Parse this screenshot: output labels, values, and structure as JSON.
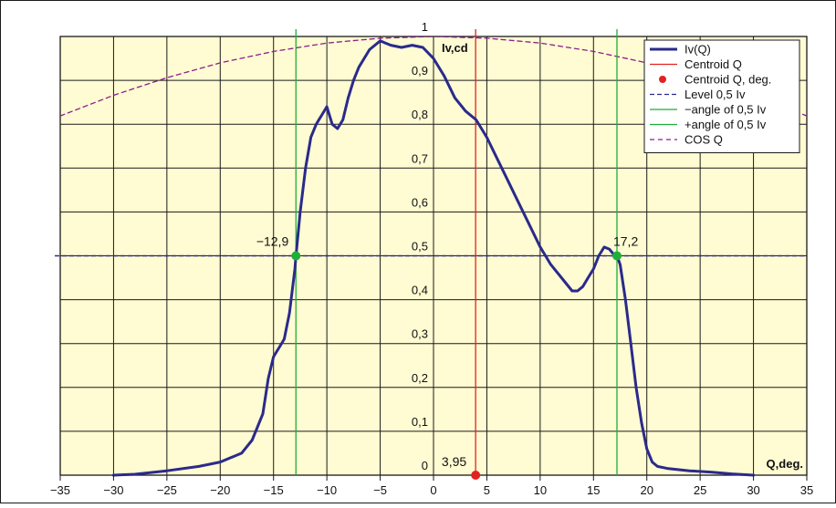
{
  "chart_data": {
    "type": "line",
    "xlabel": "Q,deg.",
    "ylabel": "Iv,cd",
    "xlim": [
      -35,
      35
    ],
    "ylim": [
      0,
      1
    ],
    "x_ticks": [
      "-35",
      "-30",
      "-25",
      "-20",
      "-15",
      "-10",
      "-5",
      "0",
      "5",
      "10",
      "15",
      "20",
      "25",
      "30",
      "35"
    ],
    "y_ticks": [
      "0",
      "0,1",
      "0,2",
      "0,3",
      "0,4",
      "0,5",
      "0,6",
      "0,7",
      "0,8",
      "0,9",
      "1"
    ],
    "grid": true,
    "legend_position": "top-right",
    "legend": [
      "Iv(Q)",
      "Centroid Q",
      "Centroid Q, deg.",
      "Level 0,5 Iv",
      "−angle of 0,5 Iv",
      "+angle of 0,5 Iv",
      "COS Q"
    ],
    "series": [
      {
        "name": "Iv(Q)",
        "color": "#2a2a8c",
        "x": [
          -30,
          -28,
          -25,
          -22,
          -20,
          -18,
          -17,
          -16,
          -15.5,
          -15,
          -14.5,
          -14,
          -13.5,
          -13,
          -12.9,
          -12.5,
          -12,
          -11.5,
          -11,
          -10.5,
          -10,
          -9.5,
          -9,
          -8.5,
          -8,
          -7.5,
          -7,
          -6.5,
          -6,
          -5.5,
          -5,
          -4.5,
          -4,
          -3,
          -2,
          -1,
          0,
          1,
          2,
          3,
          4,
          5,
          6,
          7,
          8,
          9,
          10,
          11,
          12,
          13,
          13.5,
          14,
          14.5,
          15,
          15.5,
          16,
          16.5,
          17,
          17.2,
          17.5,
          18,
          18.5,
          19,
          19.5,
          20,
          20.5,
          21,
          22,
          24,
          26,
          28,
          30
        ],
        "y": [
          0,
          0.002,
          0.01,
          0.02,
          0.03,
          0.05,
          0.08,
          0.14,
          0.22,
          0.27,
          0.29,
          0.31,
          0.37,
          0.47,
          0.5,
          0.6,
          0.7,
          0.77,
          0.8,
          0.82,
          0.84,
          0.8,
          0.79,
          0.81,
          0.86,
          0.9,
          0.93,
          0.95,
          0.97,
          0.98,
          0.99,
          0.985,
          0.98,
          0.975,
          0.98,
          0.975,
          0.95,
          0.91,
          0.86,
          0.83,
          0.81,
          0.77,
          0.72,
          0.67,
          0.62,
          0.57,
          0.52,
          0.48,
          0.45,
          0.42,
          0.42,
          0.43,
          0.45,
          0.47,
          0.5,
          0.52,
          0.515,
          0.5,
          0.5,
          0.48,
          0.4,
          0.3,
          0.2,
          0.12,
          0.06,
          0.03,
          0.02,
          0.015,
          0.01,
          0.007,
          0.003,
          0
        ]
      },
      {
        "name": "COS Q",
        "color": "#8b1e8b",
        "dashed": true,
        "x": [
          -35,
          -30,
          -25,
          -20,
          -15,
          -10,
          -5,
          0,
          5,
          10,
          15,
          20,
          25,
          30,
          35
        ],
        "y": [
          0.819,
          0.866,
          0.906,
          0.94,
          0.966,
          0.985,
          0.996,
          1,
          0.996,
          0.985,
          0.966,
          0.94,
          0.906,
          0.866,
          0.819
        ]
      },
      {
        "name": "Level 0,5 Iv",
        "color": "#2a2a8c",
        "dashed": true,
        "y_value": 0.5
      },
      {
        "name": "Centroid Q",
        "color": "#e52020",
        "x_value": 3.95
      },
      {
        "name": "−angle of 0,5 Iv",
        "color": "#1fae3a",
        "x_value": -12.9
      },
      {
        "name": "+angle of 0,5 Iv",
        "color": "#1fae3a",
        "x_value": 17.2
      }
    ],
    "markers": [
      {
        "name": "Centroid Q, deg.",
        "x": 3.95,
        "y": 0,
        "color": "#e52020",
        "label": "3,95"
      },
      {
        "x": -12.9,
        "y": 0.5,
        "color": "#1fae3a",
        "label": "−12,9"
      },
      {
        "x": 17.2,
        "y": 0.5,
        "color": "#1fae3a",
        "label": "17,2"
      }
    ],
    "colors": {
      "background": "#fffbd2",
      "grid": "#1a1a1a",
      "frame": "#1a1a1a"
    }
  }
}
